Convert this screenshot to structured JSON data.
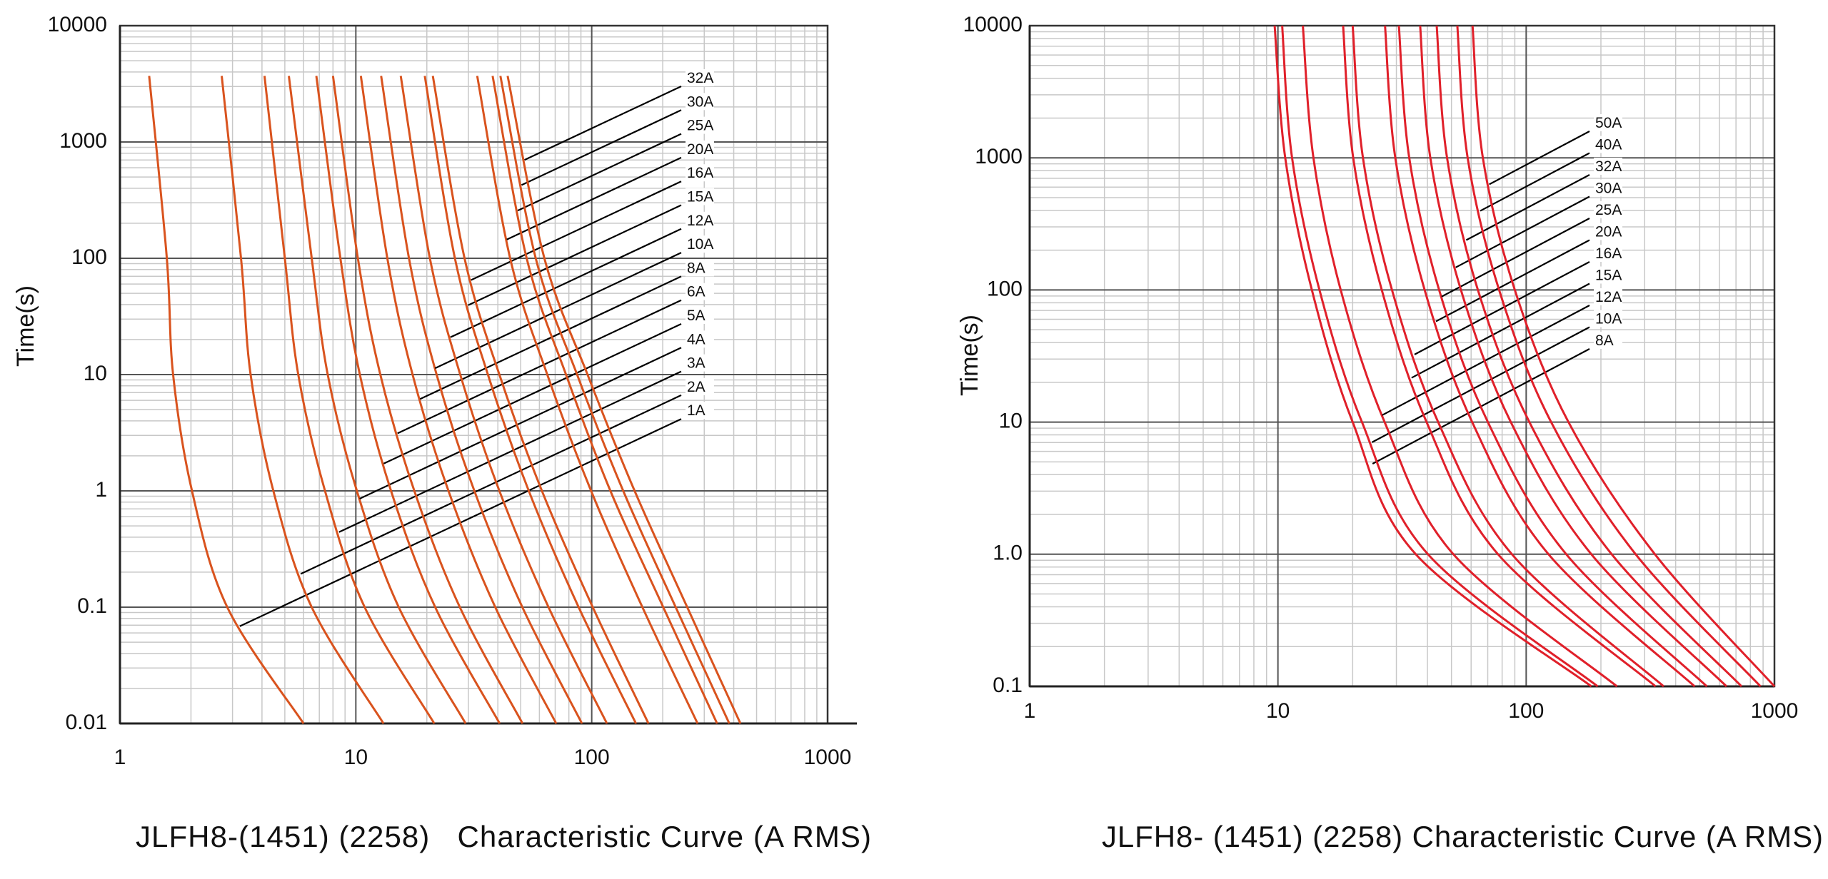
{
  "chart_data": [
    {
      "type": "line",
      "xlabel": "JLFH8-(1451) (2258)   Characteristic Curve (A RMS)",
      "ylabel": "Time(s)",
      "log_x": true,
      "log_y": true,
      "grid": true,
      "minor_grid": true,
      "xlim": [
        1,
        1000
      ],
      "ylim": [
        0.01,
        10000
      ],
      "xticks": [
        1,
        10,
        100,
        1000
      ],
      "yticks": [
        0.01,
        0.1,
        1,
        10,
        100,
        1000,
        10000
      ],
      "series": [
        {
          "name": "1A",
          "color": "#d9531e",
          "x": [
            1.33,
            1.58,
            1.68,
            2.02,
            2.85,
            6.0
          ],
          "values": [
            3700,
            100,
            10,
            1,
            0.1,
            0.01
          ]
        },
        {
          "name": "2A",
          "color": "#d9531e",
          "x": [
            2.7,
            3.26,
            3.58,
            4.47,
            6.5,
            13.1
          ],
          "values": [
            3700,
            100,
            10,
            1,
            0.1,
            0.01
          ]
        },
        {
          "name": "3A",
          "color": "#d9531e",
          "x": [
            4.1,
            5.0,
            5.7,
            7.4,
            10.9,
            21.5
          ],
          "values": [
            3700,
            100,
            10,
            1,
            0.1,
            0.01
          ]
        },
        {
          "name": "4A",
          "color": "#d9531e",
          "x": [
            5.2,
            6.5,
            7.6,
            10.1,
            15.2,
            29.2
          ],
          "values": [
            3700,
            100,
            10,
            1,
            0.1,
            0.01
          ]
        },
        {
          "name": "5A",
          "color": "#d9531e",
          "x": [
            6.8,
            8.6,
            10.4,
            14.1,
            21.7,
            40.7
          ],
          "values": [
            3700,
            100,
            10,
            1,
            0.1,
            0.01
          ]
        },
        {
          "name": "6A",
          "color": "#d9531e",
          "x": [
            8.0,
            10.2,
            12.7,
            17.7,
            27.6,
            50.9
          ],
          "values": [
            3700,
            100,
            10,
            1,
            0.1,
            0.01
          ]
        },
        {
          "name": "8A",
          "color": "#d9531e",
          "x": [
            10.5,
            13.6,
            17.4,
            24.7,
            39,
            70.7
          ],
          "values": [
            3700,
            100,
            10,
            1,
            0.1,
            0.01
          ]
        },
        {
          "name": "10A",
          "color": "#d9531e",
          "x": [
            12.8,
            16.8,
            22,
            31.8,
            50.8,
            90.9
          ],
          "values": [
            3700,
            100,
            10,
            1,
            0.1,
            0.01
          ]
        },
        {
          "name": "12A",
          "color": "#d9531e",
          "x": [
            15.5,
            20.6,
            27.7,
            40.6,
            65.6,
            116
          ],
          "values": [
            3700,
            100,
            10,
            1,
            0.1,
            0.01
          ]
        },
        {
          "name": "15A",
          "color": "#d9531e",
          "x": [
            19.6,
            26.3,
            36.3,
            54.1,
            88,
            154
          ],
          "values": [
            3700,
            100,
            10,
            1,
            0.1,
            0.01
          ]
        },
        {
          "name": "16A",
          "color": "#d9531e",
          "x": [
            21.2,
            28.9,
            40.6,
            61.5,
            101,
            174
          ],
          "values": [
            3700,
            100,
            10,
            1,
            0.1,
            0.01
          ]
        },
        {
          "name": "20A",
          "color": "#d9531e",
          "x": [
            32.7,
            45.1,
            64.8,
            99.4,
            164,
            281
          ],
          "values": [
            3700,
            100,
            10,
            1,
            0.1,
            0.01
          ]
        },
        {
          "name": "25A",
          "color": "#d9531e",
          "x": [
            38,
            53,
            77.8,
            120,
            201,
            340
          ],
          "values": [
            3700,
            100,
            10,
            1,
            0.1,
            0.01
          ]
        },
        {
          "name": "30A",
          "color": "#d9531e",
          "x": [
            41,
            57.9,
            86.7,
            136,
            227,
            383
          ],
          "values": [
            3700,
            100,
            10,
            1,
            0.1,
            0.01
          ]
        },
        {
          "name": "32A",
          "color": "#d9531e",
          "x": [
            44,
            63,
            96,
            152,
            254,
            427
          ],
          "values": [
            3700,
            100,
            10,
            1,
            0.1,
            0.01
          ]
        }
      ]
    },
    {
      "type": "line",
      "xlabel": "JLFH8- (1451) (2258) Characteristic Curve (A RMS)",
      "ylabel": "Time(s)",
      "log_x": true,
      "log_y": true,
      "grid": true,
      "minor_grid": true,
      "xlim": [
        1,
        1000
      ],
      "ylim": [
        0.1,
        10000
      ],
      "xticks": [
        1,
        10,
        100,
        1000
      ],
      "yticks": [
        0.1,
        {
          "value": 1,
          "label": "1.0"
        },
        10,
        100,
        1000,
        10000
      ],
      "series": [
        {
          "name": "8A",
          "color": "#e0202a",
          "x": [
            9.7,
            10.7,
            13.7,
            20.0,
            35.9,
            183
          ],
          "values": [
            10000,
            1000,
            100,
            10,
            1,
            0.1
          ]
        },
        {
          "name": "10A",
          "color": "#e0202a",
          "x": [
            10.4,
            11.4,
            14.7,
            21.8,
            40.2,
            194
          ],
          "values": [
            10000,
            1000,
            100,
            10,
            1,
            0.1
          ]
        },
        {
          "name": "12A",
          "color": "#e0202a",
          "x": [
            12.6,
            13.9,
            17.9,
            26.9,
            50.9,
            232
          ],
          "values": [
            10000,
            1000,
            100,
            10,
            1,
            0.1
          ]
        },
        {
          "name": "15A",
          "color": "#e0202a",
          "x": [
            18.3,
            20.1,
            26.2,
            39.7,
            77,
            332
          ],
          "values": [
            10000,
            1000,
            100,
            10,
            1,
            0.1
          ]
        },
        {
          "name": "16A",
          "color": "#e0202a",
          "x": [
            20,
            22,
            28.8,
            44.2,
            87.6,
            358
          ],
          "values": [
            10000,
            1000,
            100,
            10,
            1,
            0.1
          ]
        },
        {
          "name": "20A",
          "color": "#e0202a",
          "x": [
            27,
            29.7,
            39,
            60.6,
            123,
            477
          ],
          "values": [
            10000,
            1000,
            100,
            10,
            1,
            0.1
          ]
        },
        {
          "name": "25A",
          "color": "#e0202a",
          "x": [
            30.7,
            33.8,
            44.6,
            70.1,
            145,
            534
          ],
          "values": [
            10000,
            1000,
            100,
            10,
            1,
            0.1
          ]
        },
        {
          "name": "30A",
          "color": "#e0202a",
          "x": [
            37.4,
            41.1,
            54.6,
            86.7,
            183,
            641
          ],
          "values": [
            10000,
            1000,
            100,
            10,
            1,
            0.1
          ]
        },
        {
          "name": "32A",
          "color": "#e0202a",
          "x": [
            43.6,
            48,
            63.9,
            103,
            221,
            737
          ],
          "values": [
            10000,
            1000,
            100,
            10,
            1,
            0.1
          ]
        },
        {
          "name": "40A",
          "color": "#e0202a",
          "x": [
            52.8,
            58.1,
            77.8,
            126,
            276,
            879
          ],
          "values": [
            10000,
            1000,
            100,
            10,
            1,
            0.1
          ]
        },
        {
          "name": "50A",
          "color": "#e0202a",
          "x": [
            60.8,
            66.9,
            90,
            148,
            330,
            1000
          ],
          "values": [
            10000,
            1000,
            100,
            10,
            1,
            0.1
          ]
        }
      ]
    }
  ]
}
